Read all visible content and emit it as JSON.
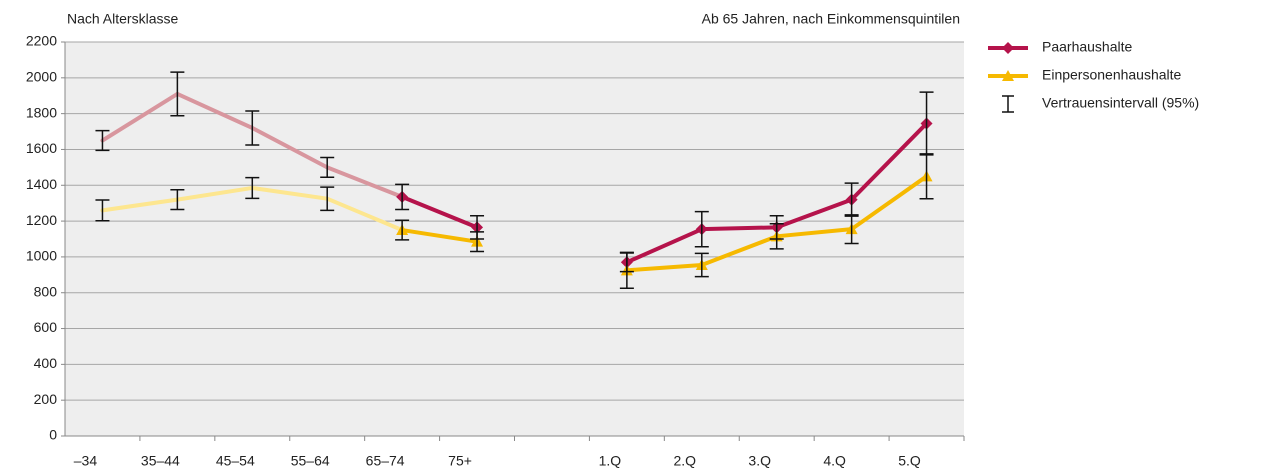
{
  "chart_data": {
    "type": "line",
    "subtitle_left": "Nach Altersklasse",
    "subtitle_right": "Ab 65 Jahren, nach Einkommensquintilen",
    "categories": [
      "–34",
      "35–44",
      "45–54",
      "55–64",
      "65–74",
      "75+",
      null,
      "1.Q",
      "2.Q",
      "3.Q",
      "4.Q",
      "5.Q"
    ],
    "ylim": [
      0,
      2200
    ],
    "yticks": [
      0,
      200,
      400,
      600,
      800,
      1000,
      1200,
      1400,
      1600,
      1800,
      2000,
      2200
    ],
    "grid": true,
    "faded_points": [
      0,
      1,
      2,
      3
    ],
    "ci_label": "Vertrauensintervall (95%)",
    "series": [
      {
        "name": "Paarhaushalte",
        "color": "#b5134b",
        "faded_color": "#d8969e",
        "marker": "diamond",
        "values": [
          1650,
          1910,
          1720,
          1500,
          1335,
          1165,
          null,
          970,
          1155,
          1165,
          1320,
          1745
        ],
        "errors": [
          55,
          122,
          95,
          55,
          70,
          65,
          null,
          52,
          98,
          65,
          92,
          175
        ]
      },
      {
        "name": "Einpersonenhaushalte",
        "color": "#f6b900",
        "faded_color": "#fde68f",
        "marker": "triangle",
        "values": [
          1260,
          1320,
          1385,
          1325,
          1150,
          1085,
          null,
          925,
          955,
          1115,
          1155,
          1450
        ],
        "errors": [
          58,
          55,
          58,
          65,
          55,
          55,
          null,
          100,
          65,
          70,
          80,
          125
        ]
      }
    ]
  }
}
